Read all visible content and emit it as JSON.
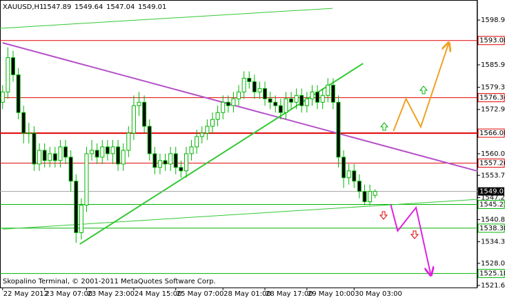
{
  "chart_data": {
    "type": "candlestick",
    "title": "XAUUSD,H1",
    "footer": "Skopalino Terminal, © 2001-2011 MetaQuotes Software Corp.",
    "up_color": "#00b400",
    "down_color": "#00b400",
    "xlim": [
      -0.5,
      90.5
    ],
    "ylim": [
      1521.0,
      1604.8
    ],
    "categories": [
      "22 May 2012",
      null,
      null,
      null,
      null,
      null,
      null,
      null,
      "23 May 07:00",
      null,
      null,
      null,
      null,
      null,
      null,
      null,
      "23 May 23:00",
      null,
      null,
      null,
      null,
      null,
      null,
      null,
      null,
      "24 May 15:00",
      null,
      null,
      null,
      null,
      null,
      null,
      null,
      "25 May 07:00",
      null,
      null,
      null,
      null,
      null,
      null,
      null,
      null,
      "28 May 01:00",
      null,
      null,
      null,
      null,
      null,
      null,
      null,
      "28 May 17:00",
      null,
      null,
      null,
      null,
      null,
      null,
      null,
      "29 May 10:00",
      null,
      null,
      null,
      null,
      null,
      null,
      null,
      null,
      "30 May 03:00",
      null,
      null,
      null,
      null
    ],
    "open": [
      1575,
      1578,
      1588,
      1583,
      1572,
      1566,
      1566,
      1557,
      1561,
      1558,
      1560,
      1558,
      1562,
      1559,
      1552,
      1537,
      1545,
      1560,
      1561,
      1559,
      1562,
      1560,
      1562,
      1557,
      1561,
      1566,
      1574,
      1575,
      1568,
      1560,
      1556,
      1558,
      1557,
      1560,
      1556,
      1555,
      1560,
      1562,
      1565,
      1566,
      1568,
      1570,
      1572,
      1575,
      1574,
      1576,
      1578,
      1582,
      1581,
      1578,
      1579,
      1576,
      1575,
      1574,
      1572,
      1576,
      1575,
      1577,
      1574,
      1576,
      1578,
      1575,
      1577,
      1580,
      1575,
      1559,
      1553,
      1555,
      1552,
      1549,
      1546,
      1547.89
    ],
    "high": [
      1580,
      1591,
      1590,
      1585,
      1574,
      1569,
      1568,
      1563,
      1563,
      1562,
      1562,
      1564,
      1564,
      1561,
      1554,
      1547,
      1562,
      1564,
      1563,
      1564,
      1564,
      1564,
      1564,
      1563,
      1568,
      1577,
      1578,
      1577,
      1570,
      1562,
      1560,
      1560,
      1562,
      1562,
      1558,
      1562,
      1564,
      1567,
      1568,
      1570,
      1572,
      1574,
      1577,
      1577,
      1578,
      1580,
      1584,
      1584,
      1583,
      1581,
      1581,
      1578,
      1577,
      1576,
      1578,
      1578,
      1579,
      1579,
      1578,
      1580,
      1580,
      1579,
      1582,
      1582,
      1577,
      1561,
      1557,
      1557,
      1554,
      1551,
      1551,
      1549.64
    ],
    "low": [
      1573,
      1576,
      1581,
      1570,
      1563,
      1563,
      1555,
      1555,
      1556,
      1556,
      1556,
      1556,
      1557,
      1549,
      1534,
      1535,
      1543,
      1558,
      1557,
      1557,
      1558,
      1557,
      1555,
      1555,
      1559,
      1564,
      1571,
      1566,
      1558,
      1554,
      1554,
      1555,
      1555,
      1554,
      1553,
      1553,
      1558,
      1560,
      1563,
      1564,
      1566,
      1568,
      1570,
      1572,
      1572,
      1574,
      1576,
      1579,
      1576,
      1576,
      1574,
      1573,
      1572,
      1570,
      1570,
      1573,
      1573,
      1572,
      1572,
      1574,
      1573,
      1573,
      1575,
      1573,
      1556,
      1550,
      1551,
      1550,
      1547,
      1545,
      1545,
      1547.04
    ],
    "close": [
      1578,
      1588,
      1583,
      1572,
      1566,
      1566,
      1557,
      1561,
      1558,
      1560,
      1558,
      1562,
      1559,
      1552,
      1537,
      1545,
      1560,
      1561,
      1559,
      1562,
      1560,
      1562,
      1557,
      1561,
      1566,
      1574,
      1575,
      1568,
      1560,
      1556,
      1558,
      1557,
      1560,
      1556,
      1555,
      1560,
      1562,
      1565,
      1566,
      1568,
      1570,
      1572,
      1575,
      1574,
      1576,
      1578,
      1582,
      1581,
      1578,
      1579,
      1576,
      1575,
      1574,
      1572,
      1576,
      1575,
      1577,
      1574,
      1576,
      1578,
      1575,
      1577,
      1580,
      1575,
      1559,
      1553,
      1555,
      1552,
      1549,
      1546,
      1549,
      1549.01
    ],
    "yticks": [
      1598.95,
      {
        "value": 1585.9,
        "label": "1585.90"
      },
      1579.35,
      {
        "value": 1572.9,
        "label": "1572.90"
      },
      {
        "value": 1560.0,
        "label": "1560.00"
      },
      {
        "value": 1553.7,
        "label": "1553.70"
      },
      {
        "value": 1547.2,
        "label": "1547.20"
      },
      {
        "value": 1540.8,
        "label": "1540.80"
      },
      1534.35,
      1528.05,
      {
        "value": 1521.6,
        "label": "1521.60"
      }
    ],
    "levels": [
      {
        "value": 1593.0,
        "label": "1593.00",
        "color": "#e00000",
        "width": 1
      },
      {
        "value": 1576.34,
        "label": "1576.34",
        "color": "#e00000",
        "width": 1
      },
      {
        "value": 1566.0,
        "label": "1566.00",
        "color": "#e00000",
        "width": 2
      },
      {
        "value": 1557.26,
        "label": "1557.26",
        "color": "#e00000",
        "width": 1
      },
      {
        "value": 1545.21,
        "label": "1545.21",
        "color": "#00b400",
        "width": 1
      },
      {
        "value": 1538.3,
        "label": "1538.30",
        "color": "#00b400",
        "width": 1
      },
      {
        "value": 1525.1,
        "label": "1525.10",
        "color": "#00b400",
        "width": 1
      }
    ],
    "current_color": "#a0a0a0",
    "trendlines": [
      {
        "color": "#32c832",
        "width": 1,
        "points": [
          [
            -0.5,
            1596.54
          ],
          [
            62.9,
            1602.37
          ]
        ]
      },
      {
        "color": "#b450c8",
        "width": 2,
        "points": [
          [
            0.0,
            1592.32
          ],
          [
            90.5,
            1554.95
          ]
        ]
      },
      {
        "color": "#32c832",
        "width": 2,
        "points": [
          [
            14.7,
            1533.65
          ],
          [
            68.7,
            1586.3
          ]
        ]
      },
      {
        "color": "#32c832",
        "width": 1,
        "points": [
          [
            0.0,
            1538.0
          ],
          [
            90.5,
            1546.7
          ]
        ]
      }
    ],
    "forecasts": [
      {
        "color": "#f0a020",
        "points": [
          [
            74.5,
            1566.6
          ],
          [
            76.9,
            1576.0
          ],
          [
            79.7,
            1567.8
          ],
          [
            85.0,
            1592.1
          ]
        ]
      },
      {
        "color": "#e020e0",
        "points": [
          [
            74.0,
            1545.1
          ],
          [
            75.3,
            1537.5
          ],
          [
            78.8,
            1544.3
          ],
          [
            81.6,
            1524.8
          ]
        ]
      }
    ]
  }
}
